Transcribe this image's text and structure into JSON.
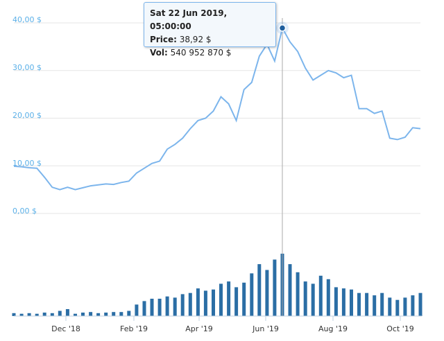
{
  "chart_data": {
    "type": "line",
    "title": "",
    "y_axis": {
      "ticks": [
        "0,00 $",
        "10,00 $",
        "20,00 $",
        "30,00 $",
        "40,00 $"
      ],
      "tick_values": [
        0,
        10,
        20,
        30,
        40
      ],
      "range": [
        0,
        40
      ]
    },
    "x_axis": {
      "ticks": [
        "Dec '18",
        "Feb '19",
        "Apr '19",
        "Jun '19",
        "Aug '19",
        "Oct '19"
      ]
    },
    "price_series": {
      "name": "Price",
      "color": "#7cb5ec",
      "dates": [
        "2018-10-20",
        "2018-10-27",
        "2018-11-03",
        "2018-11-10",
        "2018-11-17",
        "2018-11-24",
        "2018-12-01",
        "2018-12-08",
        "2018-12-15",
        "2018-12-22",
        "2018-12-29",
        "2019-01-05",
        "2019-01-12",
        "2019-01-19",
        "2019-01-26",
        "2019-02-02",
        "2019-02-09",
        "2019-02-16",
        "2019-02-23",
        "2019-03-02",
        "2019-03-09",
        "2019-03-16",
        "2019-03-23",
        "2019-03-30",
        "2019-04-06",
        "2019-04-13",
        "2019-04-20",
        "2019-04-27",
        "2019-05-04",
        "2019-05-11",
        "2019-05-18",
        "2019-05-25",
        "2019-06-01",
        "2019-06-08",
        "2019-06-15",
        "2019-06-22",
        "2019-06-29",
        "2019-07-06",
        "2019-07-13",
        "2019-07-20",
        "2019-07-27",
        "2019-08-03",
        "2019-08-10",
        "2019-08-17",
        "2019-08-24",
        "2019-08-31",
        "2019-09-07",
        "2019-09-14",
        "2019-09-21",
        "2019-09-28",
        "2019-10-05",
        "2019-10-12",
        "2019-10-19",
        "2019-10-26"
      ],
      "values": [
        9.9,
        9.8,
        9.6,
        9.5,
        7.6,
        5.5,
        5.0,
        5.5,
        5.0,
        5.4,
        5.8,
        6.0,
        6.2,
        6.1,
        6.5,
        6.8,
        8.5,
        9.5,
        10.5,
        11.0,
        13.5,
        14.5,
        15.8,
        17.8,
        19.5,
        20.0,
        21.5,
        24.5,
        23.0,
        19.5,
        26.0,
        27.5,
        33.0,
        35.5,
        32.0,
        38.92,
        36.0,
        34.0,
        30.5,
        28.0,
        29.0,
        30.0,
        29.5,
        28.5,
        29.0,
        22.0,
        22.0,
        21.0,
        21.5,
        15.8,
        15.5,
        16.0,
        18.0,
        17.8
      ]
    },
    "volume_series": {
      "name": "Vol",
      "color": "#2b6ea5",
      "dates": [
        "2018-10-20",
        "2018-10-27",
        "2018-11-03",
        "2018-11-10",
        "2018-11-17",
        "2018-11-24",
        "2018-12-01",
        "2018-12-08",
        "2018-12-15",
        "2018-12-22",
        "2018-12-29",
        "2019-01-05",
        "2019-01-12",
        "2019-01-19",
        "2019-01-26",
        "2019-02-02",
        "2019-02-09",
        "2019-02-16",
        "2019-02-23",
        "2019-03-02",
        "2019-03-09",
        "2019-03-16",
        "2019-03-23",
        "2019-03-30",
        "2019-04-06",
        "2019-04-13",
        "2019-04-20",
        "2019-04-27",
        "2019-05-04",
        "2019-05-11",
        "2019-05-18",
        "2019-05-25",
        "2019-06-01",
        "2019-06-08",
        "2019-06-15",
        "2019-06-22",
        "2019-06-29",
        "2019-07-06",
        "2019-07-13",
        "2019-07-20",
        "2019-07-27",
        "2019-08-03",
        "2019-08-10",
        "2019-08-17",
        "2019-08-24",
        "2019-08-31",
        "2019-09-07",
        "2019-09-14",
        "2019-09-21",
        "2019-09-28",
        "2019-10-05",
        "2019-10-12",
        "2019-10-19",
        "2019-10-26"
      ],
      "values": [
        25000000,
        20000000,
        25000000,
        20000000,
        30000000,
        25000000,
        45000000,
        60000000,
        20000000,
        30000000,
        35000000,
        25000000,
        30000000,
        35000000,
        35000000,
        45000000,
        100000000,
        130000000,
        150000000,
        150000000,
        170000000,
        160000000,
        190000000,
        200000000,
        240000000,
        220000000,
        230000000,
        280000000,
        300000000,
        250000000,
        290000000,
        370000000,
        450000000,
        400000000,
        490000000,
        540952870,
        450000000,
        380000000,
        300000000,
        280000000,
        350000000,
        320000000,
        250000000,
        240000000,
        230000000,
        200000000,
        200000000,
        180000000,
        200000000,
        160000000,
        140000000,
        160000000,
        180000000,
        200000000
      ]
    },
    "highlight": {
      "date_label": "Sat 22 Jun 2019, 05:00:00",
      "price_label": "Price:",
      "price_value": "38,92 $",
      "vol_label": "Vol:",
      "vol_value": "540 952 870 $",
      "index": 35
    }
  }
}
